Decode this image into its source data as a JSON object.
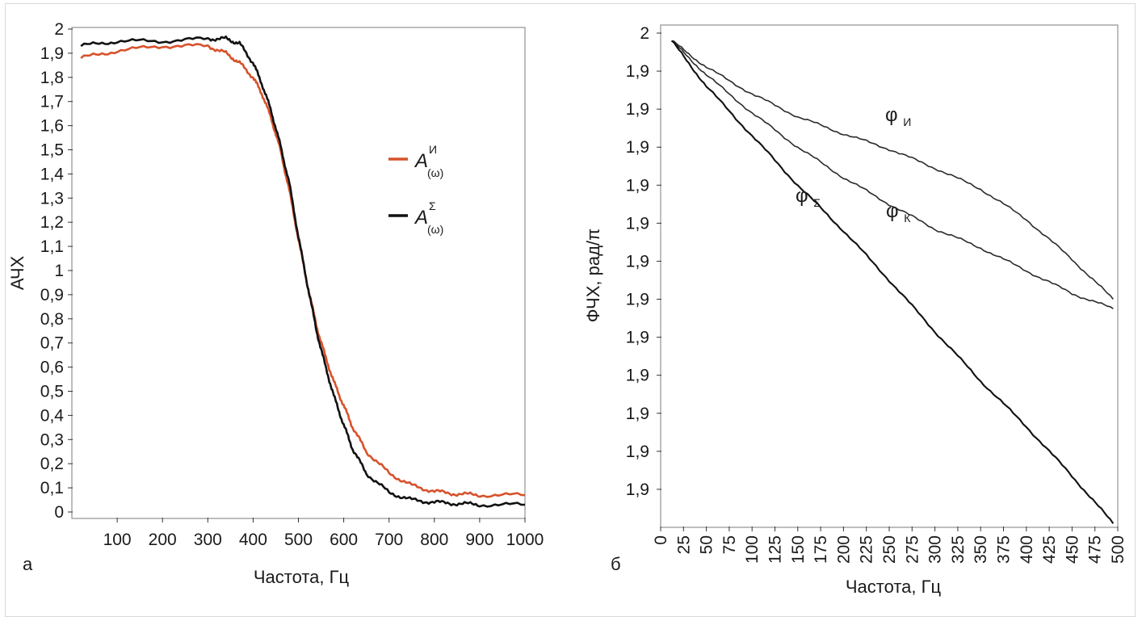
{
  "chart_data": [
    {
      "type": "line",
      "panel_label": "а",
      "title": "",
      "xlabel": "Частота, Гц",
      "ylabel": "АЧХ",
      "xlim": [
        0,
        1000
      ],
      "ylim": [
        0,
        2
      ],
      "x_ticks": [
        100,
        200,
        300,
        400,
        500,
        600,
        700,
        800,
        900,
        1000
      ],
      "x_tick_labels": [
        "100",
        "200",
        "300",
        "400",
        "500",
        "600",
        "700",
        "800",
        "900",
        "1000"
      ],
      "y_ticks": [
        0,
        0.1,
        0.2,
        0.3,
        0.4,
        0.5,
        0.6,
        0.7,
        0.8,
        0.9,
        1,
        1.1,
        1.2,
        1.3,
        1.4,
        1.5,
        1.6,
        1.7,
        1.8,
        1.9,
        2
      ],
      "y_tick_labels": [
        "0",
        "0,1",
        "0,2",
        "0,3",
        "0,4",
        "0,5",
        "0,6",
        "0,7",
        "0,8",
        "0,9",
        "1",
        "1,1",
        "1,2",
        "1,3",
        "1,4",
        "1,5",
        "1,6",
        "1,7",
        "1,8",
        "1,9",
        "2"
      ],
      "grid": false,
      "legend": "right",
      "series": [
        {
          "legend_main": "A",
          "legend_sup": "И",
          "legend_sub": "(ω)",
          "color": "#d7522b",
          "x": [
            20,
            100,
            200,
            300,
            340,
            370,
            400,
            420,
            440,
            460,
            480,
            500,
            520,
            540,
            560,
            580,
            600,
            620,
            650,
            700,
            750,
            800,
            850,
            900,
            1000
          ],
          "y": [
            1.88,
            1.91,
            1.93,
            1.93,
            1.9,
            1.86,
            1.8,
            1.73,
            1.63,
            1.5,
            1.33,
            1.13,
            0.94,
            0.77,
            0.64,
            0.53,
            0.44,
            0.35,
            0.25,
            0.16,
            0.11,
            0.085,
            0.075,
            0.07,
            0.07
          ]
        },
        {
          "legend_main": "A",
          "legend_sup": "Σ",
          "legend_sub": "(ω)",
          "color": "#111111",
          "x": [
            20,
            100,
            200,
            300,
            340,
            370,
            400,
            420,
            440,
            460,
            480,
            500,
            520,
            540,
            560,
            580,
            600,
            620,
            650,
            700,
            750,
            800,
            850,
            900,
            1000
          ],
          "y": [
            1.93,
            1.95,
            1.95,
            1.96,
            1.96,
            1.94,
            1.86,
            1.77,
            1.66,
            1.52,
            1.36,
            1.14,
            0.94,
            0.75,
            0.6,
            0.47,
            0.36,
            0.26,
            0.16,
            0.08,
            0.05,
            0.04,
            0.035,
            0.03,
            0.03
          ]
        }
      ]
    },
    {
      "type": "line",
      "panel_label": "б",
      "title": "",
      "xlabel": "Частота, Гц",
      "ylabel": "ФЧХ, рад/π",
      "xlim": [
        0,
        500
      ],
      "ylim": [
        0,
        13
      ],
      "x_ticks": [
        0,
        25,
        50,
        75,
        100,
        125,
        150,
        175,
        200,
        225,
        250,
        275,
        300,
        325,
        350,
        375,
        400,
        425,
        450,
        475,
        500
      ],
      "x_tick_labels": [
        "0",
        "25",
        "50",
        "75",
        "100",
        "125",
        "150",
        "175",
        "200",
        "225",
        "250",
        "275",
        "300",
        "325",
        "350",
        "375",
        "400",
        "425",
        "450",
        "475",
        "500"
      ],
      "y_ticks": [
        13,
        12,
        11,
        10,
        9,
        8,
        7,
        6,
        5,
        4,
        3,
        2,
        1
      ],
      "y_tick_labels": [
        "2",
        "1,9",
        "1,9",
        "1,9",
        "1,9",
        "1,9",
        "1,9",
        "1,9",
        "1,9",
        "1,9",
        "1,9",
        "1,9",
        "1,9"
      ],
      "grid": false,
      "series": [
        {
          "annotation": "φИ",
          "annotation_main": "φ",
          "annotation_sub": "И",
          "annotation_at": [
            255,
            10.3
          ],
          "color": "#2a2a2a",
          "x": [
            12,
            50,
            100,
            150,
            200,
            250,
            300,
            350,
            400,
            450,
            495
          ],
          "y": [
            12.8,
            12.1,
            11.4,
            10.8,
            10.35,
            9.95,
            9.45,
            8.9,
            8.1,
            7.05,
            6.0
          ]
        },
        {
          "annotation": "φК",
          "annotation_main": "φ",
          "annotation_sub": "К",
          "annotation_at": [
            250,
            7.85
          ],
          "color": "#2a2a2a",
          "x": [
            12,
            50,
            100,
            150,
            200,
            250,
            300,
            350,
            400,
            450,
            495
          ],
          "y": [
            12.8,
            11.9,
            10.9,
            10.0,
            9.2,
            8.5,
            7.85,
            7.35,
            6.75,
            6.15,
            5.75
          ]
        },
        {
          "annotation": "φΣ",
          "annotation_main": "φ",
          "annotation_sub": "Σ",
          "annotation_at": [
            150,
            8.0
          ],
          "color": "#111111",
          "x": [
            12,
            50,
            100,
            150,
            200,
            250,
            300,
            350,
            400,
            450,
            495
          ],
          "y": [
            12.8,
            11.6,
            10.3,
            9.0,
            7.8,
            6.5,
            5.15,
            3.85,
            2.65,
            1.35,
            0.1
          ]
        }
      ]
    }
  ]
}
